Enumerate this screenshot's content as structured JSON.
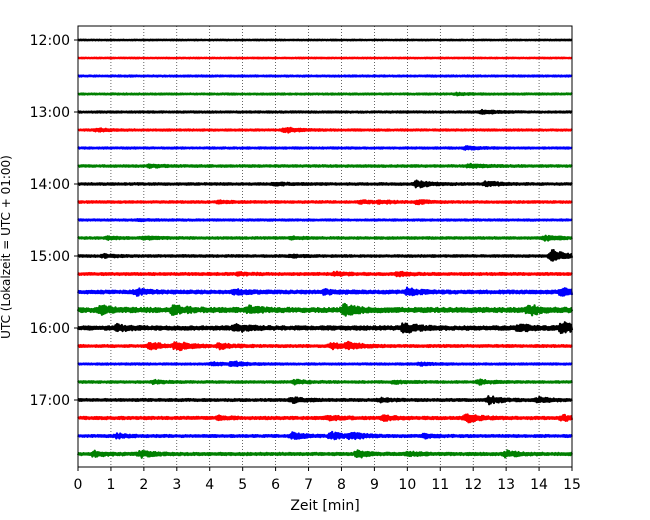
{
  "chart_data": {
    "type": "line",
    "title": "",
    "xlabel": "Zeit  [min]",
    "ylabel": "UTC (Lokalzeit = UTC + 01:00)",
    "xlim": [
      0,
      15
    ],
    "x_ticks": [
      "0",
      "1",
      "2",
      "3",
      "4",
      "5",
      "6",
      "7",
      "8",
      "9",
      "10",
      "11",
      "12",
      "13",
      "14",
      "15"
    ],
    "y_ticks": [
      "12:00",
      "13:00",
      "14:00",
      "15:00",
      "16:00",
      "17:00"
    ],
    "grid": {
      "x": true,
      "y": false,
      "style": "dotted"
    },
    "color_cycle": [
      "#000000",
      "#ff0000",
      "#0000ff",
      "#008000"
    ],
    "trace_start_times": [
      "12:00",
      "12:15",
      "12:30",
      "12:45",
      "13:00",
      "13:15",
      "13:30",
      "13:45",
      "14:00",
      "14:15",
      "14:30",
      "14:45",
      "15:00",
      "15:15",
      "15:30",
      "15:45",
      "16:00",
      "16:15",
      "16:30",
      "16:45",
      "17:00",
      "17:15",
      "17:30",
      "17:45"
    ],
    "trace_duration_min": 15,
    "series": [
      {
        "start": "12:00",
        "color": "#000000",
        "noise": 0.25,
        "events": []
      },
      {
        "start": "12:15",
        "color": "#ff0000",
        "noise": 0.25,
        "events": []
      },
      {
        "start": "12:30",
        "color": "#0000ff",
        "noise": 0.35,
        "events": []
      },
      {
        "start": "12:45",
        "color": "#008000",
        "noise": 0.35,
        "events": [
          [
            11.5,
            0.5
          ]
        ]
      },
      {
        "start": "13:00",
        "color": "#000000",
        "noise": 0.4,
        "events": [
          [
            12.3,
            1.2
          ]
        ]
      },
      {
        "start": "13:15",
        "color": "#ff0000",
        "noise": 0.4,
        "events": [
          [
            6.3,
            1.6
          ],
          [
            0.6,
            0.8
          ]
        ]
      },
      {
        "start": "13:30",
        "color": "#0000ff",
        "noise": 0.4,
        "events": [
          [
            11.8,
            1.0
          ]
        ]
      },
      {
        "start": "13:45",
        "color": "#008000",
        "noise": 0.5,
        "events": [
          [
            2.2,
            0.8
          ],
          [
            11.9,
            1.0
          ]
        ]
      },
      {
        "start": "14:00",
        "color": "#000000",
        "noise": 0.5,
        "events": [
          [
            10.3,
            2.2
          ],
          [
            12.4,
            1.6
          ],
          [
            6.0,
            0.8
          ]
        ]
      },
      {
        "start": "14:15",
        "color": "#ff0000",
        "noise": 0.5,
        "events": [
          [
            8.6,
            0.8
          ],
          [
            9.2,
            0.8
          ],
          [
            10.3,
            1.0
          ],
          [
            4.3,
            0.6
          ]
        ]
      },
      {
        "start": "14:30",
        "color": "#0000ff",
        "noise": 0.4,
        "events": [
          [
            1.8,
            0.5
          ]
        ]
      },
      {
        "start": "14:45",
        "color": "#008000",
        "noise": 0.5,
        "events": [
          [
            0.9,
            0.8
          ],
          [
            2.0,
            0.8
          ],
          [
            14.2,
            1.4
          ],
          [
            6.5,
            0.6
          ]
        ]
      },
      {
        "start": "15:00",
        "color": "#000000",
        "noise": 0.5,
        "events": [
          [
            14.4,
            3.8
          ],
          [
            6.5,
            0.6
          ],
          [
            0.8,
            0.8
          ]
        ]
      },
      {
        "start": "15:15",
        "color": "#ff0000",
        "noise": 0.6,
        "events": [
          [
            9.7,
            1.2
          ],
          [
            7.8,
            1.0
          ],
          [
            4.9,
            0.7
          ]
        ]
      },
      {
        "start": "15:30",
        "color": "#0000ff",
        "noise": 0.9,
        "events": [
          [
            1.8,
            1.6
          ],
          [
            10.0,
            2.2
          ],
          [
            14.7,
            2.4
          ],
          [
            4.8,
            1.2
          ],
          [
            7.5,
            1.2
          ]
        ]
      },
      {
        "start": "15:45",
        "color": "#008000",
        "noise": 1.3,
        "events": [
          [
            0.7,
            2.0
          ],
          [
            2.9,
            2.6
          ],
          [
            8.1,
            3.2
          ],
          [
            13.7,
            2.8
          ],
          [
            5.2,
            1.6
          ]
        ]
      },
      {
        "start": "16:00",
        "color": "#000000",
        "noise": 1.1,
        "events": [
          [
            1.2,
            1.8
          ],
          [
            4.8,
            2.0
          ],
          [
            9.9,
            2.8
          ],
          [
            14.7,
            3.2
          ],
          [
            13.4,
            2.0
          ]
        ]
      },
      {
        "start": "16:15",
        "color": "#ff0000",
        "noise": 0.6,
        "events": [
          [
            2.2,
            2.4
          ],
          [
            3.0,
            2.8
          ],
          [
            4.3,
            1.6
          ],
          [
            7.7,
            1.6
          ],
          [
            8.2,
            2.0
          ]
        ]
      },
      {
        "start": "16:30",
        "color": "#0000ff",
        "noise": 0.4,
        "events": [
          [
            4.7,
            1.4
          ],
          [
            4.1,
            1.0
          ],
          [
            10.4,
            0.8
          ]
        ]
      },
      {
        "start": "16:45",
        "color": "#008000",
        "noise": 0.5,
        "events": [
          [
            2.3,
            0.9
          ],
          [
            6.6,
            1.2
          ],
          [
            12.2,
            1.2
          ],
          [
            9.6,
            0.8
          ]
        ]
      },
      {
        "start": "17:00",
        "color": "#000000",
        "noise": 0.6,
        "events": [
          [
            6.5,
            1.6
          ],
          [
            12.5,
            2.4
          ],
          [
            14.0,
            1.4
          ],
          [
            9.2,
            1.0
          ]
        ]
      },
      {
        "start": "17:15",
        "color": "#ff0000",
        "noise": 0.7,
        "events": [
          [
            7.6,
            1.4
          ],
          [
            9.3,
            1.4
          ],
          [
            11.8,
            2.6
          ],
          [
            14.7,
            1.6
          ],
          [
            4.3,
            1.0
          ]
        ]
      },
      {
        "start": "17:30",
        "color": "#0000ff",
        "noise": 0.6,
        "events": [
          [
            1.2,
            1.2
          ],
          [
            6.5,
            1.8
          ],
          [
            7.7,
            2.0
          ],
          [
            8.3,
            2.0
          ],
          [
            10.5,
            1.2
          ]
        ]
      },
      {
        "start": "17:45",
        "color": "#008000",
        "noise": 0.7,
        "events": [
          [
            0.5,
            1.6
          ],
          [
            1.9,
            1.8
          ],
          [
            8.5,
            2.0
          ],
          [
            10.0,
            1.2
          ],
          [
            13.0,
            1.8
          ]
        ]
      }
    ]
  }
}
